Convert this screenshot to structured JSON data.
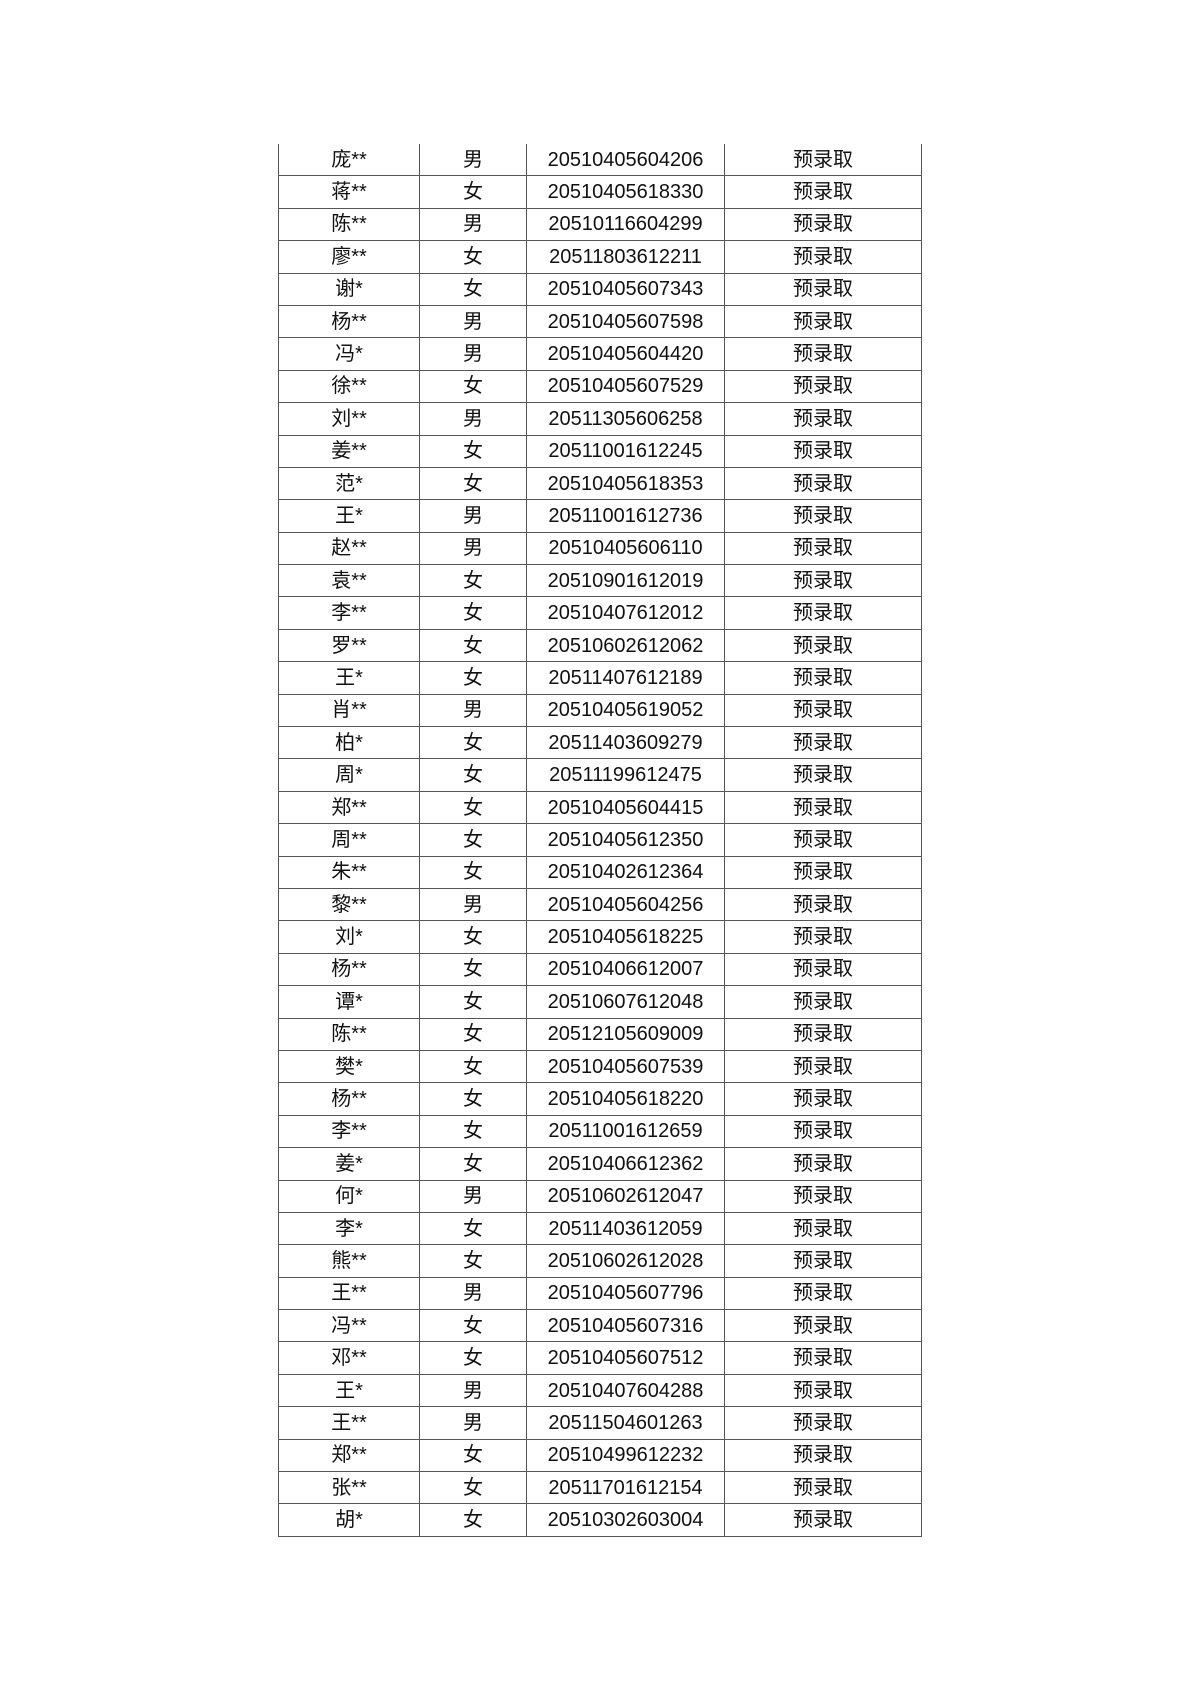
{
  "table": {
    "rows": [
      [
        "庞**",
        "男",
        "20510405604206",
        "预录取"
      ],
      [
        "蒋**",
        "女",
        "20510405618330",
        "预录取"
      ],
      [
        "陈**",
        "男",
        "20510116604299",
        "预录取"
      ],
      [
        "廖**",
        "女",
        "20511803612211",
        "预录取"
      ],
      [
        "谢*",
        "女",
        "20510405607343",
        "预录取"
      ],
      [
        "杨**",
        "男",
        "20510405607598",
        "预录取"
      ],
      [
        "冯*",
        "男",
        "20510405604420",
        "预录取"
      ],
      [
        "徐**",
        "女",
        "20510405607529",
        "预录取"
      ],
      [
        "刘**",
        "男",
        "20511305606258",
        "预录取"
      ],
      [
        "姜**",
        "女",
        "20511001612245",
        "预录取"
      ],
      [
        "范*",
        "女",
        "20510405618353",
        "预录取"
      ],
      [
        "王*",
        "男",
        "20511001612736",
        "预录取"
      ],
      [
        "赵**",
        "男",
        "20510405606110",
        "预录取"
      ],
      [
        "袁**",
        "女",
        "20510901612019",
        "预录取"
      ],
      [
        "李**",
        "女",
        "20510407612012",
        "预录取"
      ],
      [
        "罗**",
        "女",
        "20510602612062",
        "预录取"
      ],
      [
        "王*",
        "女",
        "20511407612189",
        "预录取"
      ],
      [
        "肖**",
        "男",
        "20510405619052",
        "预录取"
      ],
      [
        "柏*",
        "女",
        "20511403609279",
        "预录取"
      ],
      [
        "周*",
        "女",
        "20511199612475",
        "预录取"
      ],
      [
        "郑**",
        "女",
        "20510405604415",
        "预录取"
      ],
      [
        "周**",
        "女",
        "20510405612350",
        "预录取"
      ],
      [
        "朱**",
        "女",
        "20510402612364",
        "预录取"
      ],
      [
        "黎**",
        "男",
        "20510405604256",
        "预录取"
      ],
      [
        "刘*",
        "女",
        "20510405618225",
        "预录取"
      ],
      [
        "杨**",
        "女",
        "20510406612007",
        "预录取"
      ],
      [
        "谭*",
        "女",
        "20510607612048",
        "预录取"
      ],
      [
        "陈**",
        "女",
        "20512105609009",
        "预录取"
      ],
      [
        "樊*",
        "女",
        "20510405607539",
        "预录取"
      ],
      [
        "杨**",
        "女",
        "20510405618220",
        "预录取"
      ],
      [
        "李**",
        "女",
        "20511001612659",
        "预录取"
      ],
      [
        "姜*",
        "女",
        "20510406612362",
        "预录取"
      ],
      [
        "何*",
        "男",
        "20510602612047",
        "预录取"
      ],
      [
        "李*",
        "女",
        "20511403612059",
        "预录取"
      ],
      [
        "熊**",
        "女",
        "20510602612028",
        "预录取"
      ],
      [
        "王**",
        "男",
        "20510405607796",
        "预录取"
      ],
      [
        "冯**",
        "女",
        "20510405607316",
        "预录取"
      ],
      [
        "邓**",
        "女",
        "20510405607512",
        "预录取"
      ],
      [
        "王*",
        "男",
        "20510407604288",
        "预录取"
      ],
      [
        "王**",
        "男",
        "20511504601263",
        "预录取"
      ],
      [
        "郑**",
        "女",
        "20510499612232",
        "预录取"
      ],
      [
        "张**",
        "女",
        "20511701612154",
        "预录取"
      ],
      [
        "胡*",
        "女",
        "20510302603004",
        "预录取"
      ]
    ]
  }
}
